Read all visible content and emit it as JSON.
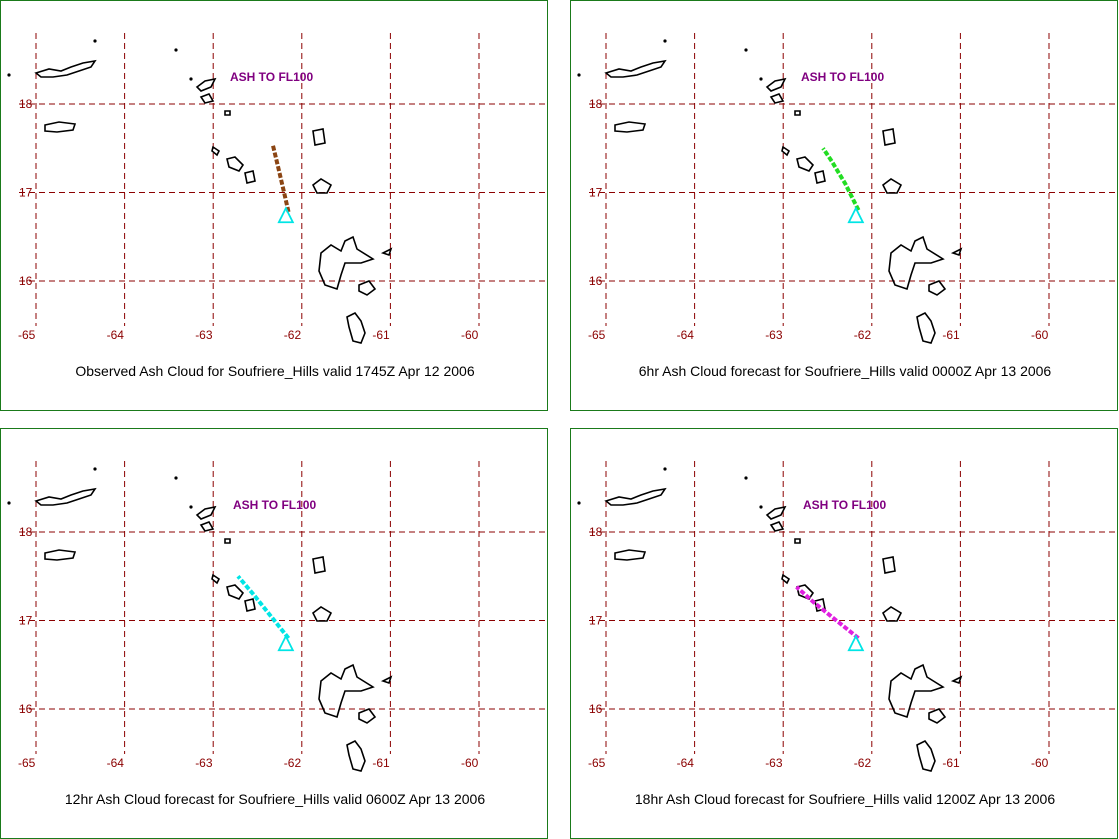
{
  "colors": {
    "grid": "#8b0000",
    "label": "#800080",
    "volcano": "#00e5e5",
    "border": "#1a7a1a"
  },
  "map": {
    "lon_ticks": [
      "-65",
      "-64",
      "-63",
      "-62",
      "-61",
      "-60"
    ],
    "lat_ticks": [
      "18",
      "17",
      "16"
    ],
    "lon_range": [
      -65.1,
      -59.3
    ],
    "lat_range": [
      15.5,
      18.8
    ],
    "volcano": {
      "name": "Soufriere_Hills",
      "lon": -62.18,
      "lat": 16.72,
      "icon": "volcano-triangle-icon"
    }
  },
  "panels": [
    {
      "caption": "Observed Ash Cloud for Soufriere_Hills valid 1745Z Apr 12 2006",
      "ash_label": "ASH TO FL100",
      "plume_color": "#8b4513",
      "plume": [
        [
          -62.15,
          16.78
        ],
        [
          -62.2,
          17.0
        ],
        [
          -62.27,
          17.3
        ],
        [
          -62.33,
          17.55
        ]
      ]
    },
    {
      "caption": "6hr Ash Cloud forecast for Soufriere_Hills valid 0000Z Apr 13 2006",
      "ash_label": "ASH TO FL100",
      "plume_color": "#22dd22",
      "plume": [
        [
          -62.15,
          16.8
        ],
        [
          -62.3,
          17.1
        ],
        [
          -62.45,
          17.35
        ],
        [
          -62.55,
          17.5
        ]
      ]
    },
    {
      "caption": "12hr Ash Cloud forecast for Soufriere_Hills valid 0600Z Apr 13 2006",
      "ash_label": "ASH TO FL100",
      "plume_color": "#00e5e5",
      "plume": [
        [
          -62.15,
          16.8
        ],
        [
          -62.35,
          17.05
        ],
        [
          -62.55,
          17.3
        ],
        [
          -62.72,
          17.5
        ]
      ]
    },
    {
      "caption": "18hr Ash Cloud forecast for Soufriere_Hills valid 1200Z Apr 13 2006",
      "ash_label": "ASH TO FL100",
      "plume_color": "#e020e0",
      "plume": [
        [
          -62.15,
          16.8
        ],
        [
          -62.4,
          17.0
        ],
        [
          -62.65,
          17.2
        ],
        [
          -62.85,
          17.38
        ]
      ]
    }
  ]
}
